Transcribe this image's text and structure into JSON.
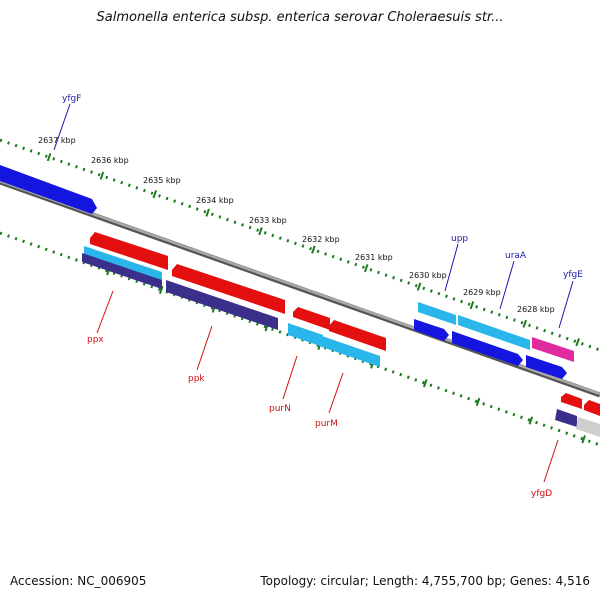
{
  "title": "Salmonella enterica subsp. enterica serovar Choleraesuis str...",
  "footer": {
    "accession": "Accession: NC_006905",
    "summary": "Topology: circular; Length: 4,755,700 bp; Genes: 4,516"
  },
  "colors": {
    "backbone": "#8a8a8a",
    "tick": "#1e7a1e",
    "forward_label": "#1a1aa8",
    "reverse_label": "#d01010"
  },
  "scale_labels": [
    "2637 kbp",
    "2636 kbp",
    "2635 kbp",
    "2634 kbp",
    "2633 kbp",
    "2632 kbp",
    "2631 kbp",
    "2630 kbp",
    "2629 kbp",
    "2628 kbp"
  ],
  "gene_labels": {
    "forward": [
      "yfgF",
      "upp",
      "uraA",
      "yfgE"
    ],
    "reverse": [
      "ppx",
      "ppk",
      "purN",
      "purM",
      "yfgD"
    ]
  }
}
